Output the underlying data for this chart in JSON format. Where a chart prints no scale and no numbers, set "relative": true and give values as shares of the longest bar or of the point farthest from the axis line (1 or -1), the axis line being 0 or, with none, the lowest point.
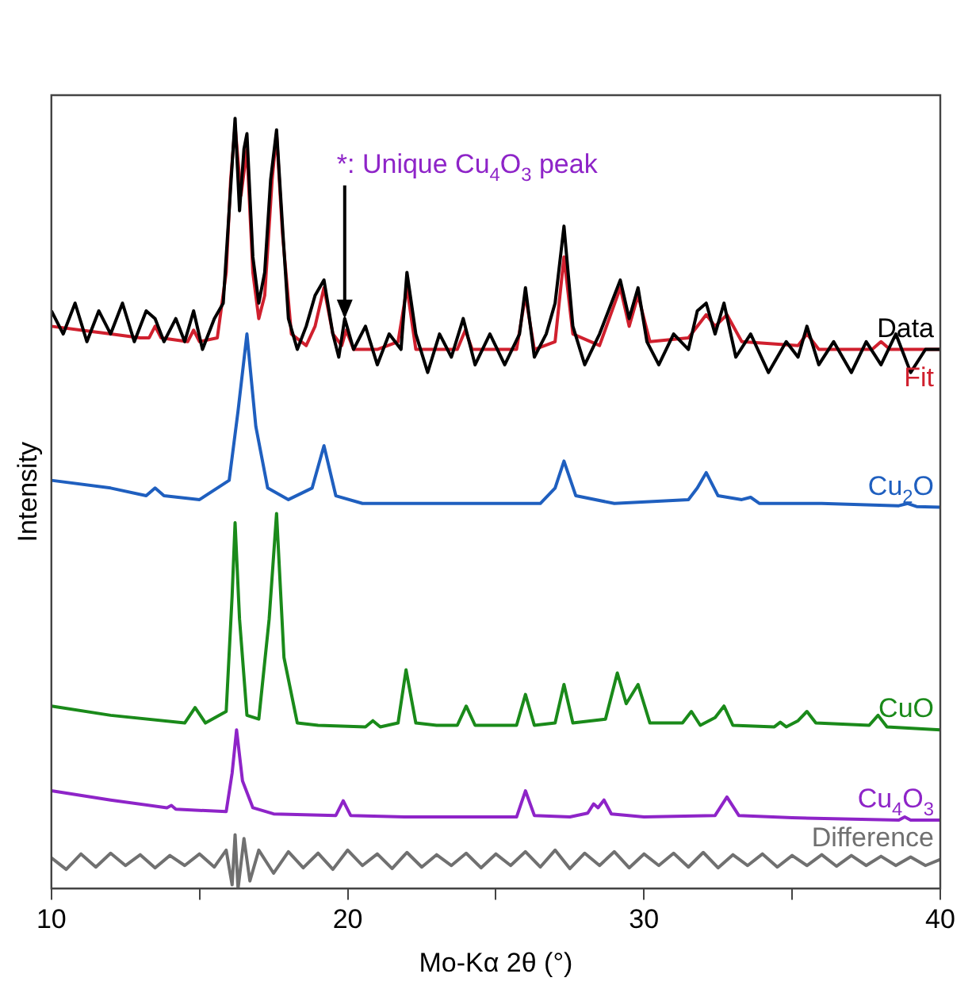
{
  "chart_data": {
    "type": "line",
    "relative": true,
    "xlabel": "Mo-Kα 2θ (°)",
    "ylabel": "Intensity",
    "xlim": [
      10,
      40
    ],
    "xticks": [
      10,
      {
        "value": 15,
        "label": null
      },
      20,
      {
        "value": 25,
        "label": null
      },
      30,
      {
        "value": 35,
        "label": null
      },
      40
    ],
    "grid": false,
    "legend": false,
    "marker": "none",
    "line_style": "solid",
    "tick_labels": "x",
    "annotations": [
      {
        "text": "*: Unique Cu$_{4}$O$_{3}$ peak",
        "x": 19.9,
        "y": 0.74
      }
    ],
    "series": [
      {
        "name": "Data",
        "color": "#000000",
        "x": [
          10,
          10.4,
          10.8,
          11.2,
          11.6,
          12,
          12.4,
          12.8,
          13.2,
          13.5,
          13.8,
          14.2,
          14.5,
          14.8,
          15.1,
          15.5,
          15.8,
          16.0,
          16.2,
          16.35,
          16.5,
          16.6,
          16.8,
          17.0,
          17.2,
          17.4,
          17.6,
          17.8,
          18.0,
          18.3,
          18.6,
          18.9,
          19.2,
          19.5,
          19.7,
          19.9,
          20.2,
          20.6,
          21.0,
          21.4,
          21.8,
          22.0,
          22.3,
          22.7,
          23.1,
          23.5,
          23.9,
          24.3,
          24.8,
          25.3,
          25.8,
          26.0,
          26.3,
          26.7,
          27.0,
          27.3,
          27.6,
          28.0,
          28.5,
          29.0,
          29.2,
          29.5,
          29.8,
          30.1,
          30.5,
          31.0,
          31.5,
          31.8,
          32.1,
          32.4,
          32.7,
          33.1,
          33.6,
          34.2,
          34.8,
          35.2,
          35.5,
          35.9,
          36.4,
          37.0,
          37.5,
          38.0,
          38.5,
          39.0,
          39.5,
          40
        ],
        "values": [
          0.75,
          0.72,
          0.76,
          0.71,
          0.75,
          0.72,
          0.76,
          0.71,
          0.75,
          0.74,
          0.71,
          0.74,
          0.71,
          0.75,
          0.7,
          0.74,
          0.76,
          0.88,
          1.0,
          0.88,
          0.96,
          0.98,
          0.82,
          0.76,
          0.8,
          0.92,
          0.985,
          0.86,
          0.74,
          0.7,
          0.73,
          0.77,
          0.79,
          0.72,
          0.69,
          0.74,
          0.7,
          0.73,
          0.68,
          0.72,
          0.7,
          0.8,
          0.72,
          0.67,
          0.72,
          0.69,
          0.74,
          0.68,
          0.72,
          0.68,
          0.72,
          0.78,
          0.69,
          0.72,
          0.76,
          0.86,
          0.73,
          0.68,
          0.72,
          0.77,
          0.79,
          0.74,
          0.78,
          0.71,
          0.68,
          0.72,
          0.7,
          0.75,
          0.76,
          0.72,
          0.76,
          0.69,
          0.72,
          0.67,
          0.71,
          0.69,
          0.73,
          0.68,
          0.71,
          0.67,
          0.71,
          0.68,
          0.72,
          0.67,
          0.7,
          0.7
        ]
      },
      {
        "name": "Fit",
        "color": "#d0202e",
        "x": [
          10,
          11,
          12,
          13,
          13.3,
          13.5,
          13.7,
          14.6,
          14.8,
          15.0,
          15.6,
          15.9,
          16.05,
          16.2,
          16.4,
          16.6,
          16.8,
          17.0,
          17.2,
          17.45,
          17.6,
          17.8,
          18.1,
          18.6,
          18.9,
          19.2,
          19.5,
          19.8,
          19.95,
          20.2,
          21.0,
          21.7,
          22.0,
          22.3,
          23.7,
          23.97,
          24.2,
          25.7,
          26.0,
          26.3,
          27.0,
          27.3,
          27.6,
          28.5,
          29.2,
          29.5,
          29.8,
          30.2,
          31.5,
          32.1,
          32.4,
          32.8,
          33.3,
          35.2,
          35.5,
          35.9,
          37.7,
          38.0,
          38.3,
          40
        ],
        "values": [
          0.73,
          0.725,
          0.72,
          0.715,
          0.715,
          0.73,
          0.715,
          0.71,
          0.725,
          0.71,
          0.715,
          0.8,
          0.92,
          0.99,
          0.9,
          0.96,
          0.8,
          0.74,
          0.77,
          0.92,
          0.98,
          0.85,
          0.72,
          0.705,
          0.73,
          0.78,
          0.72,
          0.705,
          0.725,
          0.7,
          0.7,
          0.71,
          0.78,
          0.7,
          0.7,
          0.725,
          0.7,
          0.7,
          0.77,
          0.7,
          0.71,
          0.82,
          0.72,
          0.705,
          0.78,
          0.73,
          0.77,
          0.71,
          0.715,
          0.745,
          0.73,
          0.745,
          0.71,
          0.705,
          0.72,
          0.7,
          0.7,
          0.71,
          0.7,
          0.7
        ]
      },
      {
        "name": "Cu$_{2}$O",
        "color": "#1f5fbf",
        "x": [
          10,
          12,
          13.2,
          13.5,
          13.8,
          15,
          16.0,
          16.3,
          16.6,
          16.9,
          17.3,
          18,
          18.8,
          19.2,
          19.6,
          20.5,
          23,
          26.5,
          27.0,
          27.3,
          27.7,
          29,
          31.5,
          31.8,
          32.1,
          32.5,
          33.3,
          33.6,
          33.9,
          36,
          38.6,
          38.9,
          39.2,
          40
        ],
        "values": [
          0.53,
          0.52,
          0.51,
          0.52,
          0.51,
          0.505,
          0.53,
          0.62,
          0.72,
          0.6,
          0.52,
          0.505,
          0.52,
          0.575,
          0.51,
          0.5,
          0.5,
          0.5,
          0.52,
          0.555,
          0.51,
          0.5,
          0.505,
          0.52,
          0.54,
          0.51,
          0.505,
          0.508,
          0.5,
          0.5,
          0.497,
          0.5,
          0.496,
          0.495
        ]
      },
      {
        "name": "CuO",
        "color": "#1a8a1a",
        "x": [
          10,
          12,
          14.5,
          14.85,
          15.2,
          15.9,
          16.1,
          16.2,
          16.35,
          16.6,
          17.0,
          17.35,
          17.6,
          17.85,
          18.3,
          19,
          20.6,
          20.85,
          21.1,
          21.7,
          21.97,
          22.3,
          23.0,
          23.7,
          24.0,
          24.3,
          25.7,
          26.0,
          26.3,
          27.0,
          27.3,
          27.6,
          28.7,
          29.1,
          29.4,
          29.8,
          30.2,
          31.3,
          31.6,
          31.9,
          32.4,
          32.7,
          33.0,
          34.4,
          34.6,
          34.8,
          35.2,
          35.5,
          35.8,
          37.6,
          37.9,
          38.2,
          40
        ],
        "values": [
          0.237,
          0.225,
          0.215,
          0.235,
          0.215,
          0.23,
          0.38,
          0.475,
          0.35,
          0.225,
          0.22,
          0.35,
          0.487,
          0.3,
          0.215,
          0.212,
          0.21,
          0.218,
          0.21,
          0.215,
          0.284,
          0.215,
          0.212,
          0.212,
          0.237,
          0.212,
          0.212,
          0.252,
          0.212,
          0.215,
          0.265,
          0.215,
          0.22,
          0.28,
          0.24,
          0.265,
          0.215,
          0.215,
          0.23,
          0.212,
          0.222,
          0.237,
          0.212,
          0.21,
          0.216,
          0.21,
          0.218,
          0.23,
          0.215,
          0.212,
          0.225,
          0.21,
          0.206
        ]
      },
      {
        "name": "Cu$_{4}$O$_{3}$",
        "color": "#8e24c8",
        "x": [
          10,
          12,
          13.9,
          14.05,
          14.2,
          15.9,
          16.1,
          16.25,
          16.45,
          16.8,
          17.5,
          19.6,
          19.85,
          20.1,
          22,
          25.7,
          26.0,
          26.3,
          27.5,
          28.1,
          28.3,
          28.45,
          28.65,
          28.9,
          30,
          32.4,
          32.8,
          33.2,
          35,
          38.6,
          38.8,
          39,
          40
        ],
        "values": [
          0.127,
          0.115,
          0.105,
          0.108,
          0.103,
          0.1,
          0.15,
          0.206,
          0.14,
          0.105,
          0.097,
          0.095,
          0.114,
          0.095,
          0.093,
          0.093,
          0.127,
          0.095,
          0.093,
          0.098,
          0.11,
          0.105,
          0.115,
          0.097,
          0.093,
          0.095,
          0.119,
          0.095,
          0.092,
          0.089,
          0.093,
          0.089,
          0.089
        ]
      },
      {
        "name": "Difference",
        "color": "#707070",
        "x": [
          10,
          10.5,
          11,
          11.5,
          12,
          12.5,
          13,
          13.5,
          14,
          14.5,
          15,
          15.5,
          15.9,
          16.1,
          16.2,
          16.3,
          16.5,
          16.7,
          17,
          17.5,
          18,
          18.5,
          19,
          19.5,
          20,
          20.5,
          21,
          21.5,
          22,
          22.5,
          23,
          23.5,
          24,
          24.5,
          25,
          25.5,
          26,
          26.5,
          27,
          27.5,
          28,
          28.5,
          29,
          29.5,
          30,
          30.5,
          31,
          31.5,
          32,
          32.5,
          33,
          33.5,
          34,
          34.5,
          35,
          35.5,
          36,
          36.5,
          37,
          37.5,
          38,
          38.5,
          39,
          39.5,
          40
        ],
        "values": [
          0.04,
          0.025,
          0.045,
          0.028,
          0.046,
          0.03,
          0.044,
          0.027,
          0.043,
          0.03,
          0.045,
          0.028,
          0.05,
          0.005,
          0.07,
          0.0,
          0.065,
          0.01,
          0.05,
          0.02,
          0.048,
          0.027,
          0.046,
          0.025,
          0.05,
          0.03,
          0.045,
          0.026,
          0.047,
          0.028,
          0.044,
          0.03,
          0.046,
          0.027,
          0.045,
          0.03,
          0.048,
          0.028,
          0.05,
          0.026,
          0.046,
          0.03,
          0.048,
          0.027,
          0.045,
          0.03,
          0.046,
          0.028,
          0.047,
          0.027,
          0.044,
          0.03,
          0.045,
          0.028,
          0.043,
          0.03,
          0.044,
          0.029,
          0.043,
          0.03,
          0.042,
          0.03,
          0.041,
          0.03,
          0.038
        ]
      }
    ]
  }
}
